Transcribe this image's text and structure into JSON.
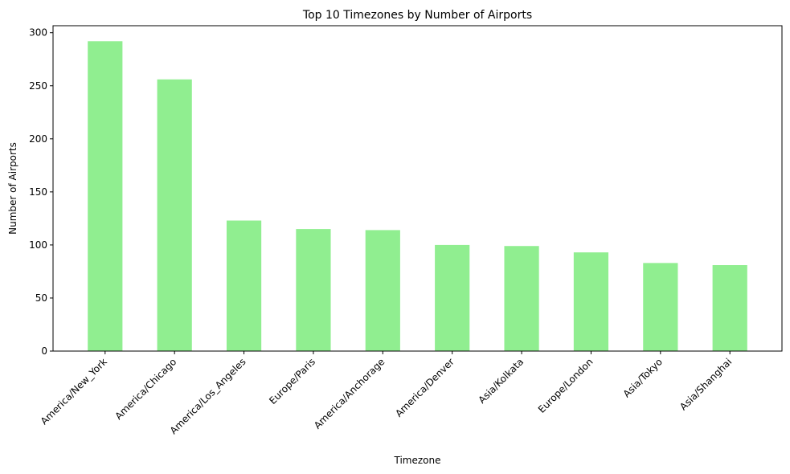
{
  "chart_data": {
    "type": "bar",
    "title": "Top 10 Timezones by Number of Airports",
    "xlabel": "Timezone",
    "ylabel": "Number of Airports",
    "categories": [
      "America/New_York",
      "America/Chicago",
      "America/Los_Angeles",
      "Europe/Paris",
      "America/Anchorage",
      "America/Denver",
      "Asia/Kolkata",
      "Europe/London",
      "Asia/Tokyo",
      "Asia/Shanghai"
    ],
    "values": [
      292,
      256,
      123,
      115,
      114,
      100,
      99,
      93,
      83,
      81
    ],
    "ylim": [
      0,
      306.6
    ],
    "yticks": [
      0,
      50,
      100,
      150,
      200,
      250,
      300
    ],
    "bar_color": "#90ee90",
    "grid": false,
    "legend": "none"
  }
}
